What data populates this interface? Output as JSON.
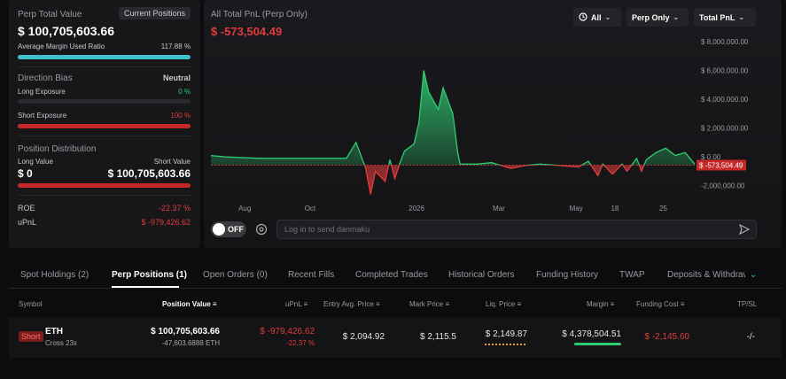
{
  "left": {
    "perp_total_value_label": "Perp Total Value",
    "current_positions_btn": "Current Positions",
    "perp_total_value": "$ 100,705,603.66",
    "avg_margin_label": "Average Margin Used Ratio",
    "avg_margin_value": "117.88 %",
    "avg_margin_fill": 1.0,
    "direction_bias_label": "Direction Bias",
    "direction_bias_value": "Neutral",
    "long_exposure_label": "Long Exposure",
    "long_exposure_value": "0 %",
    "long_exposure_fill": 0,
    "short_exposure_label": "Short Exposure",
    "short_exposure_value": "100 %",
    "short_exposure_fill": 1.0,
    "position_distribution_label": "Position Distribution",
    "long_value_label": "Long Value",
    "short_value_label": "Short Value",
    "long_value": "$ 0",
    "short_value": "$ 100,705,603.66",
    "roe_label": "ROE",
    "roe_value": "-22.37 %",
    "upnl_label": "uPnL",
    "upnl_value": "$ -979,426.62"
  },
  "chart": {
    "title": "All Total PnL (Perp Only)",
    "current_value": "$ -573,504.49",
    "controls": {
      "all": "All",
      "perp_only": "Perp Only",
      "total_pnl": "Total PnL"
    },
    "current_marker": "$ -573,504.49",
    "comment_placeholder": "Log in to send danmaku",
    "toggle_label": "OFF"
  },
  "chart_data": {
    "type": "area",
    "title": "All Total PnL (Perp Only)",
    "x_ticks": [
      "Aug",
      "Oct",
      "2026",
      "Mar",
      "May",
      "18",
      "25"
    ],
    "y_ticks": [
      "$ 8,000,000.00",
      "$ 6,000,000.00",
      "$ 4,000,000.00",
      "$ 2,000,000.00",
      "$ 0.00",
      "-2,000,000.00"
    ],
    "ylim": [
      -3000000,
      8000000
    ],
    "baseline": -573504.49,
    "series": [
      {
        "x": [
          0,
          0.03,
          0.1,
          0.2,
          0.28,
          0.3,
          0.32,
          0.33,
          0.34,
          0.36,
          0.37,
          0.38,
          0.39,
          0.4,
          0.42,
          0.43,
          0.44,
          0.45,
          0.47,
          0.48,
          0.5,
          0.51,
          0.515,
          0.52,
          0.53,
          0.55,
          0.58,
          0.62,
          0.65,
          0.68,
          0.72,
          0.76,
          0.78,
          0.8,
          0.81,
          0.83,
          0.85,
          0.86,
          0.88,
          0.89,
          0.9,
          0.92,
          0.94,
          0.96,
          0.98,
          1.0
        ],
        "values": [
          100000,
          0,
          -100000,
          -100000,
          -100000,
          1000000,
          -800000,
          -2600000,
          -1000000,
          -1700000,
          -200000,
          -1500000,
          -500000,
          400000,
          900000,
          2400000,
          6000000,
          4500000,
          3300000,
          4800000,
          3000000,
          300000,
          -500000,
          -500000,
          -500000,
          -500000,
          -400000,
          -800000,
          -600000,
          -500000,
          -600000,
          -700000,
          -300000,
          -1300000,
          -500000,
          -1200000,
          -500000,
          -1000000,
          -100000,
          -1000000,
          -200000,
          300000,
          600000,
          100000,
          300000,
          -500000
        ]
      }
    ]
  },
  "tabs": [
    "Spot Holdings (2)",
    "Perp Positions (1)",
    "Open Orders (0)",
    "Recent Fills",
    "Completed Trades",
    "Historical Orders",
    "Funding History",
    "TWAP",
    "Deposits & Withdrawals"
  ],
  "table": {
    "headers": [
      "Symbol",
      "Position Value",
      "uPnL",
      "Entry Avg. Price",
      "Mark Price",
      "Liq. Price",
      "Margin",
      "Funding Cost",
      "TP/SL"
    ],
    "row": {
      "side": "Short",
      "symbol": "ETH",
      "leverage": "Cross 23x",
      "position_value": "$ 100,705,603.66",
      "position_size": "-47,603.6888 ETH",
      "upnl": "$ -979,426.62",
      "upnl_pct": "-22.37 %",
      "entry_price": "$ 2,094.92",
      "mark_price": "$ 2,115.5",
      "liq_price": "$ 2,149.87",
      "margin": "$ 4,378,504.51",
      "funding_cost": "$ -2,145.60",
      "tpsl": "-/-"
    }
  },
  "colors": {
    "green": "#2ecc71",
    "red": "#e03c3c",
    "accent": "#3ec1c9"
  }
}
